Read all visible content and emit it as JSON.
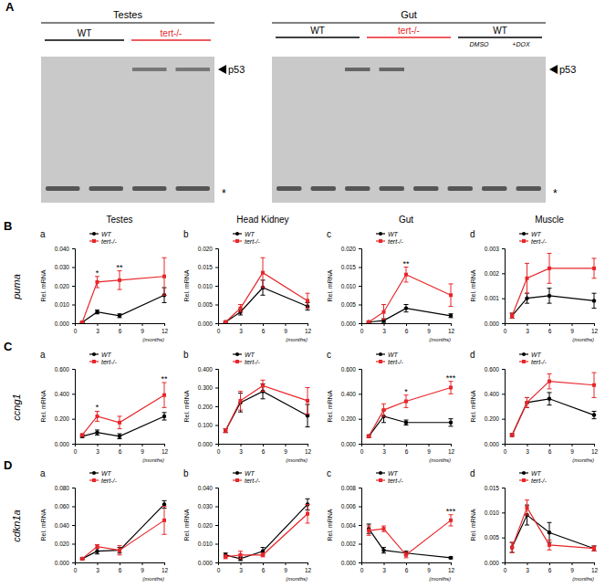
{
  "chart_data": [
    {
      "type": "line",
      "title": "Testes",
      "subtitle": "a",
      "x_label": "(months)",
      "y_label": "Rel. mRNA",
      "x": [
        1,
        3,
        6,
        12
      ],
      "xlim": [
        0,
        12
      ],
      "xticks": [
        0,
        3,
        6,
        9,
        12
      ],
      "ylim": [
        0,
        0.04
      ],
      "yticks": [
        {
          "value": 0,
          "label": "0.000"
        },
        {
          "value": 0.01,
          "label": "0.010"
        },
        {
          "value": 0.02,
          "label": "0.020"
        },
        {
          "value": 0.03,
          "label": "0.030"
        },
        {
          "value": 0.04,
          "label": "0.040"
        }
      ],
      "legend": "top-right",
      "series": [
        {
          "name": "WT",
          "color": "#000000",
          "marker": "circle",
          "values": [
            0.0005,
            0.006,
            0.004,
            0.015
          ],
          "error": [
            0.0003,
            0.001,
            0.001,
            0.004
          ]
        },
        {
          "name": "tert-/-",
          "color": "#e8262a",
          "marker": "square",
          "values": [
            0.0005,
            0.022,
            0.023,
            0.025
          ],
          "error": [
            0.0003,
            0.003,
            0.005,
            0.01
          ]
        }
      ],
      "annotations": [
        {
          "x": 3,
          "text": "*"
        },
        {
          "x": 6,
          "text": "**"
        }
      ]
    },
    {
      "type": "line",
      "title": "Head Kidney",
      "subtitle": "b",
      "x_label": "(months)",
      "y_label": "Rel. mRNA",
      "x": [
        1,
        3,
        6,
        12
      ],
      "xlim": [
        0,
        12
      ],
      "xticks": [
        0,
        3,
        6,
        9,
        12
      ],
      "ylim": [
        0,
        0.02
      ],
      "yticks": [
        {
          "value": 0,
          "label": "0.000"
        },
        {
          "value": 0.005,
          "label": "0.005"
        },
        {
          "value": 0.01,
          "label": "0.010"
        },
        {
          "value": 0.015,
          "label": "0.015"
        },
        {
          "value": 0.02,
          "label": "0.020"
        }
      ],
      "legend": "top-right",
      "series": [
        {
          "name": "WT",
          "color": "#000000",
          "marker": "circle",
          "values": [
            0.0003,
            0.003,
            0.0095,
            0.0045
          ],
          "error": [
            0.0002,
            0.0008,
            0.002,
            0.001
          ]
        },
        {
          "name": "tert-/-",
          "color": "#e8262a",
          "marker": "square",
          "values": [
            0.0003,
            0.004,
            0.0135,
            0.006
          ],
          "error": [
            0.0002,
            0.001,
            0.004,
            0.002
          ]
        }
      ],
      "annotations": []
    },
    {
      "type": "line",
      "title": "Gut",
      "subtitle": "c",
      "x_label": "(months)",
      "y_label": "Rel. mRNA",
      "x": [
        1,
        3,
        6,
        12
      ],
      "xlim": [
        0,
        12
      ],
      "xticks": [
        0,
        3,
        6,
        9,
        12
      ],
      "ylim": [
        0,
        0.02
      ],
      "yticks": [
        {
          "value": 0,
          "label": "0.000"
        },
        {
          "value": 0.005,
          "label": "0.005"
        },
        {
          "value": 0.01,
          "label": "0.010"
        },
        {
          "value": 0.015,
          "label": "0.015"
        },
        {
          "value": 0.02,
          "label": "0.020"
        }
      ],
      "legend": "top-right",
      "series": [
        {
          "name": "WT",
          "color": "#000000",
          "marker": "circle",
          "values": [
            0.0003,
            0.0007,
            0.004,
            0.002
          ],
          "error": [
            0.0002,
            0.0005,
            0.001,
            0.0005
          ]
        },
        {
          "name": "tert-/-",
          "color": "#e8262a",
          "marker": "square",
          "values": [
            0.0003,
            0.003,
            0.013,
            0.0075
          ],
          "error": [
            0.0002,
            0.002,
            0.002,
            0.003
          ]
        }
      ],
      "annotations": [
        {
          "x": 6,
          "text": "**"
        }
      ]
    },
    {
      "type": "line",
      "title": "Muscle",
      "subtitle": "d",
      "x_label": "(months)",
      "y_label": "Rel. mRNA",
      "x": [
        1,
        3,
        6,
        12
      ],
      "xlim": [
        0,
        12
      ],
      "xticks": [
        0,
        3,
        6,
        9,
        12
      ],
      "ylim": [
        0,
        0.003
      ],
      "yticks": [
        {
          "value": 0,
          "label": "0.000"
        },
        {
          "value": 0.001,
          "label": "0.001"
        },
        {
          "value": 0.002,
          "label": "0.002"
        },
        {
          "value": 0.003,
          "label": "0.003"
        }
      ],
      "legend": "top-right",
      "series": [
        {
          "name": "WT",
          "color": "#000000",
          "marker": "circle",
          "values": [
            0.0003,
            0.001,
            0.0011,
            0.0009
          ],
          "error": [
            0.0001,
            0.0002,
            0.0003,
            0.0003
          ]
        },
        {
          "name": "tert-/-",
          "color": "#e8262a",
          "marker": "square",
          "values": [
            0.0003,
            0.0018,
            0.0022,
            0.0022
          ],
          "error": [
            0.0001,
            0.0006,
            0.0006,
            0.0004
          ]
        }
      ],
      "annotations": []
    },
    {
      "type": "line",
      "subtitle": "a",
      "x_label": "(months)",
      "y_label": "Rel. mRNA",
      "x": [
        1,
        3,
        6,
        12
      ],
      "xlim": [
        0,
        12
      ],
      "xticks": [
        0,
        3,
        6,
        9,
        12
      ],
      "ylim": [
        0,
        0.6
      ],
      "yticks": [
        {
          "value": 0,
          "label": "0.000"
        },
        {
          "value": 0.2,
          "label": "0.200"
        },
        {
          "value": 0.4,
          "label": "0.400"
        },
        {
          "value": 0.6,
          "label": "0.600"
        }
      ],
      "legend": "top-right",
      "series": [
        {
          "name": "WT",
          "color": "#000000",
          "marker": "circle",
          "values": [
            0.06,
            0.09,
            0.06,
            0.22
          ],
          "error": [
            0.01,
            0.02,
            0.02,
            0.03
          ]
        },
        {
          "name": "tert-/-",
          "color": "#e8262a",
          "marker": "square",
          "values": [
            0.07,
            0.22,
            0.17,
            0.39
          ],
          "error": [
            0.01,
            0.04,
            0.05,
            0.1
          ]
        }
      ],
      "annotations": [
        {
          "x": 3,
          "text": "*"
        },
        {
          "x": 12,
          "text": "**"
        }
      ]
    },
    {
      "type": "line",
      "subtitle": "b",
      "x_label": "(months)",
      "y_label": "Rel. mRNA",
      "x": [
        1,
        3,
        6,
        12
      ],
      "xlim": [
        0,
        12
      ],
      "xticks": [
        0,
        3,
        6,
        9,
        12
      ],
      "ylim": [
        0,
        0.4
      ],
      "yticks": [
        {
          "value": 0,
          "label": "0.000"
        },
        {
          "value": 0.1,
          "label": "0.100"
        },
        {
          "value": 0.2,
          "label": "0.200"
        },
        {
          "value": 0.3,
          "label": "0.300"
        },
        {
          "value": 0.4,
          "label": "0.400"
        }
      ],
      "legend": "top-right",
      "series": [
        {
          "name": "WT",
          "color": "#000000",
          "marker": "circle",
          "values": [
            0.07,
            0.22,
            0.28,
            0.15
          ],
          "error": [
            0.01,
            0.05,
            0.04,
            0.06
          ]
        },
        {
          "name": "tert-/-",
          "color": "#e8262a",
          "marker": "square",
          "values": [
            0.07,
            0.23,
            0.31,
            0.23
          ],
          "error": [
            0.01,
            0.05,
            0.03,
            0.07
          ]
        }
      ],
      "annotations": []
    },
    {
      "type": "line",
      "subtitle": "c",
      "x_label": "(months)",
      "y_label": "Rel. mRNA",
      "x": [
        1,
        3,
        6,
        12
      ],
      "xlim": [
        0,
        12
      ],
      "xticks": [
        0,
        3,
        6,
        9,
        12
      ],
      "ylim": [
        0,
        0.6
      ],
      "yticks": [
        {
          "value": 0,
          "label": "0.000"
        },
        {
          "value": 0.2,
          "label": "0.200"
        },
        {
          "value": 0.4,
          "label": "0.400"
        },
        {
          "value": 0.6,
          "label": "0.600"
        }
      ],
      "legend": "top-right",
      "series": [
        {
          "name": "WT",
          "color": "#000000",
          "marker": "circle",
          "values": [
            0.06,
            0.22,
            0.17,
            0.17
          ],
          "error": [
            0.01,
            0.05,
            0.02,
            0.03
          ]
        },
        {
          "name": "tert-/-",
          "color": "#e8262a",
          "marker": "square",
          "values": [
            0.06,
            0.27,
            0.34,
            0.45
          ],
          "error": [
            0.01,
            0.05,
            0.05,
            0.05
          ]
        }
      ],
      "annotations": [
        {
          "x": 6,
          "text": "*"
        },
        {
          "x": 12,
          "text": "***"
        }
      ]
    },
    {
      "type": "line",
      "subtitle": "d",
      "x_label": "(months)",
      "y_label": "Rel. mRNA",
      "x": [
        1,
        3,
        6,
        12
      ],
      "xlim": [
        0,
        12
      ],
      "xticks": [
        0,
        3,
        6,
        9,
        12
      ],
      "ylim": [
        0,
        0.6
      ],
      "yticks": [
        {
          "value": 0,
          "label": "0.000"
        },
        {
          "value": 0.2,
          "label": "0.200"
        },
        {
          "value": 0.4,
          "label": "0.400"
        },
        {
          "value": 0.6,
          "label": "0.600"
        }
      ],
      "legend": "top-right",
      "series": [
        {
          "name": "WT",
          "color": "#000000",
          "marker": "circle",
          "values": [
            0.07,
            0.33,
            0.36,
            0.23
          ],
          "error": [
            0.01,
            0.04,
            0.05,
            0.03
          ]
        },
        {
          "name": "tert-/-",
          "color": "#e8262a",
          "marker": "square",
          "values": [
            0.07,
            0.33,
            0.5,
            0.47
          ],
          "error": [
            0.01,
            0.04,
            0.06,
            0.1
          ]
        }
      ],
      "annotations": []
    },
    {
      "type": "line",
      "subtitle": "a",
      "x_label": "(months)",
      "y_label": "Rel. mRNA",
      "x": [
        1,
        3,
        6,
        12
      ],
      "xlim": [
        0,
        12
      ],
      "xticks": [
        0,
        3,
        6,
        9,
        12
      ],
      "ylim": [
        0,
        0.08
      ],
      "yticks": [
        {
          "value": 0,
          "label": "0.000"
        },
        {
          "value": 0.02,
          "label": "0.020"
        },
        {
          "value": 0.04,
          "label": "0.040"
        },
        {
          "value": 0.06,
          "label": "0.060"
        },
        {
          "value": 0.08,
          "label": "0.080"
        }
      ],
      "legend": "top-right",
      "series": [
        {
          "name": "WT",
          "color": "#000000",
          "marker": "circle",
          "values": [
            0.004,
            0.012,
            0.013,
            0.062
          ],
          "error": [
            0.001,
            0.003,
            0.003,
            0.004
          ]
        },
        {
          "name": "tert-/-",
          "color": "#e8262a",
          "marker": "square",
          "values": [
            0.004,
            0.017,
            0.013,
            0.045
          ],
          "error": [
            0.001,
            0.002,
            0.005,
            0.015
          ]
        }
      ],
      "annotations": []
    },
    {
      "type": "line",
      "subtitle": "b",
      "x_label": "(months)",
      "y_label": "Rel. mRNA",
      "x": [
        1,
        3,
        6,
        12
      ],
      "xlim": [
        0,
        12
      ],
      "xticks": [
        0,
        3,
        6,
        9,
        12
      ],
      "ylim": [
        0,
        0.04
      ],
      "yticks": [
        {
          "value": 0,
          "label": "0.000"
        },
        {
          "value": 0.01,
          "label": "0.010"
        },
        {
          "value": 0.02,
          "label": "0.020"
        },
        {
          "value": 0.03,
          "label": "0.030"
        },
        {
          "value": 0.04,
          "label": "0.040"
        }
      ],
      "legend": "top-right",
      "series": [
        {
          "name": "WT",
          "color": "#000000",
          "marker": "circle",
          "values": [
            0.004,
            0.002,
            0.006,
            0.031
          ],
          "error": [
            0.001,
            0.001,
            0.002,
            0.003
          ]
        },
        {
          "name": "tert-/-",
          "color": "#e8262a",
          "marker": "square",
          "values": [
            0.003,
            0.004,
            0.004,
            0.026
          ],
          "error": [
            0.001,
            0.002,
            0.001,
            0.005
          ]
        }
      ],
      "annotations": []
    },
    {
      "type": "line",
      "subtitle": "c",
      "x_label": "(months)",
      "y_label": "Rel. mRNA",
      "x": [
        1,
        3,
        6,
        12
      ],
      "xlim": [
        0,
        12
      ],
      "xticks": [
        0,
        3,
        6,
        9,
        12
      ],
      "ylim": [
        0,
        0.008
      ],
      "yticks": [
        {
          "value": 0,
          "label": "0.000"
        },
        {
          "value": 0.002,
          "label": "0.002"
        },
        {
          "value": 0.004,
          "label": "0.004"
        },
        {
          "value": 0.006,
          "label": "0.006"
        },
        {
          "value": 0.008,
          "label": "0.008"
        }
      ],
      "legend": "top-right",
      "series": [
        {
          "name": "WT",
          "color": "#000000",
          "marker": "circle",
          "values": [
            0.0036,
            0.0013,
            0.001,
            0.0005
          ],
          "error": [
            0.0005,
            0.0003,
            0.0002,
            0.0001
          ]
        },
        {
          "name": "tert-/-",
          "color": "#e8262a",
          "marker": "square",
          "values": [
            0.0034,
            0.0036,
            0.0008,
            0.0045
          ],
          "error": [
            0.0005,
            0.0003,
            0.0003,
            0.0006
          ]
        }
      ],
      "annotations": [
        {
          "x": 12,
          "text": "***"
        }
      ]
    },
    {
      "type": "line",
      "subtitle": "d",
      "x_label": "(months)",
      "y_label": "Rel. mRNA",
      "x": [
        1,
        3,
        6,
        12
      ],
      "xlim": [
        0,
        12
      ],
      "xticks": [
        0,
        3,
        6,
        9,
        12
      ],
      "ylim": [
        0,
        0.015
      ],
      "yticks": [
        {
          "value": 0,
          "label": "0.000"
        },
        {
          "value": 0.005,
          "label": "0.005"
        },
        {
          "value": 0.01,
          "label": "0.010"
        },
        {
          "value": 0.015,
          "label": "0.015"
        }
      ],
      "legend": "top-right",
      "series": [
        {
          "name": "WT",
          "color": "#000000",
          "marker": "circle",
          "values": [
            0.003,
            0.0095,
            0.006,
            0.0028
          ],
          "error": [
            0.001,
            0.002,
            0.002,
            0.0005
          ]
        },
        {
          "name": "tert-/-",
          "color": "#e8262a",
          "marker": "square",
          "values": [
            0.003,
            0.011,
            0.0035,
            0.0028
          ],
          "error": [
            0.001,
            0.0015,
            0.001,
            0.0005
          ]
        }
      ],
      "annotations": []
    }
  ],
  "figure": {
    "panel_a": {
      "letter": "A",
      "marker_label": "p53",
      "band_marker": "*",
      "blots": [
        {
          "title": "Testes",
          "groups": [
            {
              "label": "WT",
              "color": "#000000"
            },
            {
              "label": "tert-/-",
              "color": "#e8262a"
            }
          ]
        },
        {
          "title": "Gut",
          "groups": [
            {
              "label": "WT",
              "color": "#000000"
            },
            {
              "label": "tert-/-",
              "color": "#e8262a"
            },
            {
              "label": "WT",
              "color": "#000000",
              "lanes": [
                "DMSO",
                "+DOX"
              ]
            }
          ]
        }
      ]
    },
    "rows": [
      {
        "letter": "B",
        "gene": "puma"
      },
      {
        "letter": "C",
        "gene": "ccng1"
      },
      {
        "letter": "D",
        "gene": "cdkn1a"
      }
    ]
  }
}
